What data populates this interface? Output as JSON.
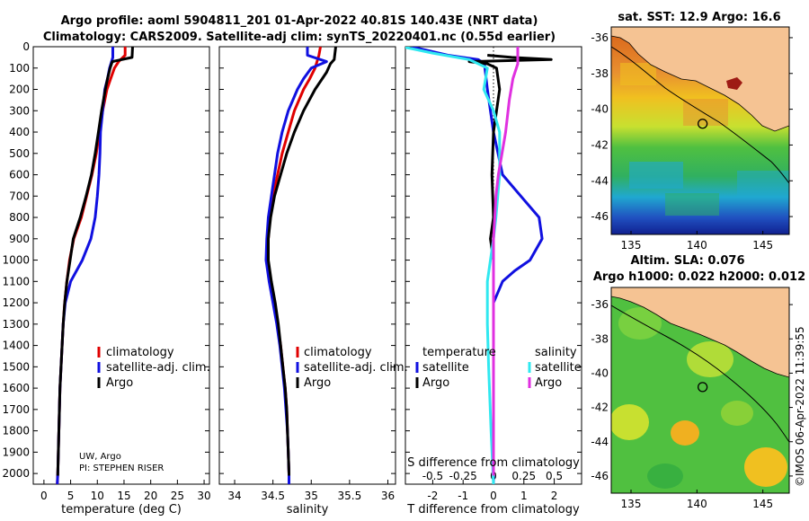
{
  "title_line1": "Argo profile: aoml 5904811_201 01-Apr-2022 40.81S 140.43E (NRT data)",
  "title_line2": "Climatology: CARS2009. Satellite-adj clim: synTS_20220401.nc (0.55d earlier)",
  "colors": {
    "climatology": "#e00000",
    "satellite": "#1010e0",
    "argo": "#000000",
    "sat_salinity": "#30e8f0",
    "argo_salinity": "#e030e0"
  },
  "chart_data": [
    {
      "type": "line",
      "id": "temperature",
      "xlabel": "temperature (deg C)",
      "xlim": [
        -2,
        31
      ],
      "ylim": [
        2050,
        0
      ],
      "xticks": [
        0,
        5,
        10,
        15,
        20,
        25,
        30
      ],
      "yticks": [
        0,
        100,
        200,
        300,
        400,
        500,
        600,
        700,
        800,
        900,
        1000,
        1100,
        1200,
        1300,
        1400,
        1500,
        1600,
        1700,
        1800,
        1900,
        2000
      ],
      "legend": [
        "climatology",
        "satellite-adj. clim.",
        "Argo"
      ],
      "series": [
        {
          "name": "climatology",
          "color": "#e00000",
          "points": [
            [
              15.2,
              0
            ],
            [
              15.2,
              40
            ],
            [
              14.0,
              70
            ],
            [
              13.2,
              100
            ],
            [
              12.5,
              150
            ],
            [
              11.8,
              200
            ],
            [
              11.0,
              300
            ],
            [
              10.4,
              400
            ],
            [
              9.8,
              500
            ],
            [
              9.0,
              600
            ],
            [
              8.0,
              700
            ],
            [
              7.0,
              800
            ],
            [
              5.6,
              900
            ],
            [
              4.8,
              1000
            ],
            [
              4.3,
              1100
            ],
            [
              3.9,
              1200
            ],
            [
              3.6,
              1300
            ],
            [
              3.4,
              1400
            ],
            [
              3.2,
              1500
            ],
            [
              3.0,
              1600
            ],
            [
              2.9,
              1700
            ],
            [
              2.8,
              1800
            ],
            [
              2.7,
              1900
            ],
            [
              2.6,
              2000
            ],
            [
              2.5,
              2050
            ]
          ]
        },
        {
          "name": "satellite-adj. clim.",
          "color": "#1010e0",
          "points": [
            [
              12.9,
              0
            ],
            [
              12.9,
              50
            ],
            [
              12.3,
              100
            ],
            [
              11.9,
              150
            ],
            [
              11.4,
              200
            ],
            [
              11.0,
              300
            ],
            [
              10.6,
              400
            ],
            [
              10.5,
              500
            ],
            [
              10.3,
              600
            ],
            [
              10.0,
              700
            ],
            [
              9.6,
              800
            ],
            [
              8.8,
              900
            ],
            [
              7.2,
              1000
            ],
            [
              5.0,
              1100
            ],
            [
              4.0,
              1200
            ],
            [
              3.6,
              1300
            ],
            [
              3.4,
              1400
            ],
            [
              3.2,
              1500
            ],
            [
              3.0,
              1600
            ],
            [
              2.9,
              1700
            ],
            [
              2.8,
              1800
            ],
            [
              2.7,
              1900
            ],
            [
              2.6,
              2000
            ],
            [
              2.5,
              2050
            ]
          ]
        },
        {
          "name": "Argo",
          "color": "#000000",
          "points": [
            [
              16.6,
              0
            ],
            [
              16.5,
              50
            ],
            [
              12.8,
              70
            ],
            [
              12.4,
              100
            ],
            [
              11.9,
              150
            ],
            [
              11.5,
              200
            ],
            [
              10.8,
              300
            ],
            [
              10.2,
              400
            ],
            [
              9.6,
              500
            ],
            [
              8.9,
              600
            ],
            [
              7.9,
              700
            ],
            [
              6.8,
              800
            ],
            [
              5.5,
              900
            ],
            [
              4.9,
              1000
            ],
            [
              4.3,
              1100
            ],
            [
              3.9,
              1200
            ],
            [
              3.6,
              1300
            ],
            [
              3.4,
              1400
            ],
            [
              3.2,
              1500
            ],
            [
              3.0,
              1600
            ],
            [
              2.9,
              1700
            ],
            [
              2.8,
              1800
            ],
            [
              2.7,
              1900
            ],
            [
              2.6,
              2000
            ],
            [
              2.6,
              2010
            ]
          ]
        }
      ],
      "annotations": [
        "UW, Argo",
        "PI: STEPHEN RISER"
      ]
    },
    {
      "type": "line",
      "id": "salinity",
      "xlabel": "salinity",
      "xlim": [
        33.8,
        36.1
      ],
      "ylim": [
        2050,
        0
      ],
      "xticks": [
        34,
        34.5,
        35,
        35.5,
        36
      ],
      "legend": [
        "climatology",
        "satellite-adj. clim.",
        "Argo"
      ],
      "series": [
        {
          "name": "climatology",
          "color": "#e00000",
          "points": [
            [
              35.12,
              0
            ],
            [
              35.1,
              40
            ],
            [
              35.05,
              100
            ],
            [
              34.98,
              150
            ],
            [
              34.9,
              200
            ],
            [
              34.78,
              300
            ],
            [
              34.7,
              400
            ],
            [
              34.62,
              500
            ],
            [
              34.56,
              600
            ],
            [
              34.5,
              700
            ],
            [
              34.46,
              800
            ],
            [
              34.44,
              900
            ],
            [
              34.43,
              1000
            ],
            [
              34.47,
              1100
            ],
            [
              34.52,
              1200
            ],
            [
              34.56,
              1300
            ],
            [
              34.6,
              1400
            ],
            [
              34.63,
              1500
            ],
            [
              34.66,
              1600
            ],
            [
              34.68,
              1700
            ],
            [
              34.69,
              1800
            ],
            [
              34.7,
              1900
            ],
            [
              34.71,
              2000
            ],
            [
              34.71,
              2050
            ]
          ]
        },
        {
          "name": "satellite-adj. clim.",
          "color": "#1010e0",
          "points": [
            [
              34.95,
              0
            ],
            [
              34.95,
              40
            ],
            [
              35.2,
              70
            ],
            [
              35.0,
              100
            ],
            [
              34.9,
              150
            ],
            [
              34.82,
              200
            ],
            [
              34.7,
              300
            ],
            [
              34.62,
              400
            ],
            [
              34.56,
              500
            ],
            [
              34.52,
              600
            ],
            [
              34.48,
              700
            ],
            [
              34.44,
              800
            ],
            [
              34.42,
              900
            ],
            [
              34.41,
              1000
            ],
            [
              34.45,
              1100
            ],
            [
              34.5,
              1200
            ],
            [
              34.55,
              1300
            ],
            [
              34.59,
              1400
            ],
            [
              34.62,
              1500
            ],
            [
              34.65,
              1600
            ],
            [
              34.67,
              1700
            ],
            [
              34.69,
              1800
            ],
            [
              34.7,
              1900
            ],
            [
              34.71,
              2000
            ],
            [
              34.71,
              2050
            ]
          ]
        },
        {
          "name": "Argo",
          "color": "#000000",
          "points": [
            [
              35.32,
              0
            ],
            [
              35.3,
              60
            ],
            [
              35.25,
              80
            ],
            [
              35.2,
              120
            ],
            [
              35.05,
              200
            ],
            [
              34.9,
              300
            ],
            [
              34.78,
              400
            ],
            [
              34.68,
              500
            ],
            [
              34.6,
              600
            ],
            [
              34.52,
              700
            ],
            [
              34.47,
              800
            ],
            [
              34.44,
              900
            ],
            [
              34.44,
              1000
            ],
            [
              34.48,
              1100
            ],
            [
              34.53,
              1200
            ],
            [
              34.57,
              1300
            ],
            [
              34.6,
              1400
            ],
            [
              34.63,
              1500
            ],
            [
              34.66,
              1600
            ],
            [
              34.68,
              1700
            ],
            [
              34.69,
              1800
            ],
            [
              34.7,
              1900
            ],
            [
              34.71,
              2000
            ],
            [
              34.71,
              2010
            ]
          ]
        }
      ]
    },
    {
      "type": "line",
      "id": "difference",
      "xlabel": "T difference from climatology",
      "xlabel_top": "S difference from climatology",
      "xlim": [
        -2.9,
        2.9
      ],
      "ylim": [
        2050,
        0
      ],
      "xticks": [
        -2,
        -1,
        0,
        1,
        2
      ],
      "s_ticks": [
        {
          "v": -0.5,
          "label": "-0.5"
        },
        {
          "v": -0.25,
          "label": "-0.25"
        },
        {
          "v": 0,
          "label": "0"
        },
        {
          "v": 0.25,
          "label": "0.25"
        },
        {
          "v": 0.5,
          "label": "0.5"
        }
      ],
      "s_scale": 4,
      "legend_groups": [
        {
          "title": "temperature",
          "items": [
            "satellite",
            "Argo"
          ]
        },
        {
          "title": "salinity",
          "items": [
            "satellite",
            "Argo"
          ]
        }
      ],
      "series": [
        {
          "name": "T satellite",
          "color": "#1010e0",
          "points": [
            [
              -2.7,
              0
            ],
            [
              -1.5,
              40
            ],
            [
              -0.5,
              60
            ],
            [
              -0.3,
              80
            ],
            [
              -0.2,
              200
            ],
            [
              0.0,
              400
            ],
            [
              0.3,
              600
            ],
            [
              0.9,
              700
            ],
            [
              1.5,
              800
            ],
            [
              1.6,
              900
            ],
            [
              1.2,
              1000
            ],
            [
              0.7,
              1050
            ],
            [
              0.3,
              1100
            ],
            [
              0.0,
              1200
            ],
            [
              0,
              2050
            ]
          ]
        },
        {
          "name": "T Argo",
          "color": "#000000",
          "points": [
            [
              -0.2,
              40
            ],
            [
              0.6,
              50
            ],
            [
              1.9,
              60
            ],
            [
              -0.8,
              70
            ],
            [
              -0.2,
              80
            ],
            [
              0.1,
              100
            ],
            [
              0.2,
              200
            ],
            [
              0.0,
              400
            ],
            [
              -0.05,
              600
            ],
            [
              0.0,
              800
            ],
            [
              -0.1,
              900
            ],
            [
              0.0,
              1000
            ],
            [
              0.0,
              2010
            ]
          ]
        },
        {
          "name": "S satellite",
          "color": "#30e8f0",
          "points": [
            [
              -0.75,
              0
            ],
            [
              -0.5,
              30
            ],
            [
              -0.2,
              60
            ],
            [
              -0.05,
              100
            ],
            [
              -0.08,
              200
            ],
            [
              0.0,
              300
            ],
            [
              0.05,
              400
            ],
            [
              0.05,
              600
            ],
            [
              0.02,
              800
            ],
            [
              0.0,
              900
            ],
            [
              -0.05,
              1100
            ],
            [
              -0.05,
              1300
            ],
            [
              -0.04,
              1500
            ],
            [
              -0.02,
              1800
            ],
            [
              0.0,
              2050
            ]
          ]
        },
        {
          "name": "S Argo",
          "color": "#e030e0",
          "points": [
            [
              0.2,
              0
            ],
            [
              0.2,
              80
            ],
            [
              0.16,
              150
            ],
            [
              0.13,
              250
            ],
            [
              0.1,
              400
            ],
            [
              0.07,
              500
            ],
            [
              0.04,
              600
            ],
            [
              0.02,
              700
            ],
            [
              0.01,
              800
            ],
            [
              0.0,
              900
            ],
            [
              0.0,
              2010
            ]
          ]
        }
      ]
    },
    {
      "type": "heatmap",
      "id": "sst_map",
      "title": "sat. SST: 12.9 Argo: 16.6",
      "xlim": [
        133.5,
        147
      ],
      "ylim": [
        -47,
        -35.4
      ],
      "xticks": [
        135,
        140,
        145
      ],
      "yticks": [
        -36,
        -38,
        -40,
        -42,
        -44,
        -46
      ],
      "argo_position": {
        "lon": 140.43,
        "lat": -40.81
      }
    },
    {
      "type": "heatmap",
      "id": "sla_map",
      "title": "Altim. SLA: 0.076",
      "subtitle": "Argo h1000: 0.022 h2000: 0.012",
      "xlim": [
        133.5,
        147
      ],
      "ylim": [
        -47,
        -35
      ],
      "xticks": [
        135,
        140,
        145
      ],
      "yticks": [
        -36,
        -38,
        -40,
        -42,
        -44,
        -46
      ],
      "argo_position": {
        "lon": 140.43,
        "lat": -40.81
      }
    }
  ],
  "imos_stamp": "©IMOS 06-Apr-2022 11:39:55"
}
